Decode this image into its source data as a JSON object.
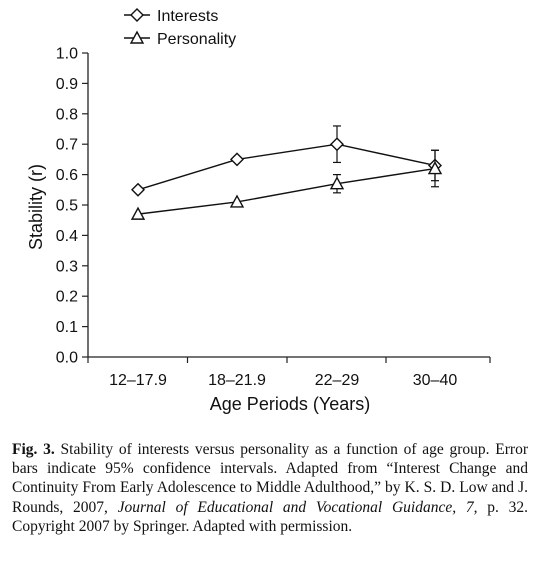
{
  "chart_data": {
    "type": "line",
    "categories": [
      "12–17.9",
      "18–21.9",
      "22–29",
      "30–40"
    ],
    "series": [
      {
        "name": "Interests",
        "marker": "diamond",
        "values": [
          0.55,
          0.65,
          0.7,
          0.63
        ],
        "error_low": [
          0.54,
          0.64,
          0.64,
          0.58
        ],
        "error_high": [
          0.56,
          0.66,
          0.76,
          0.68
        ]
      },
      {
        "name": "Personality",
        "marker": "triangle",
        "values": [
          0.47,
          0.51,
          0.57,
          0.62
        ],
        "error_low": [
          0.46,
          0.5,
          0.54,
          0.56
        ],
        "error_high": [
          0.48,
          0.52,
          0.6,
          0.68
        ]
      }
    ],
    "xlabel": "Age Periods (Years)",
    "ylabel": "Stability (r)",
    "ylim": [
      0.0,
      1.0
    ],
    "yticks": [
      "0.0",
      "0.1",
      "0.2",
      "0.3",
      "0.4",
      "0.5",
      "0.6",
      "0.7",
      "0.8",
      "0.9",
      "1.0"
    ],
    "grid": false,
    "legend_position": "top-left"
  },
  "caption": {
    "label": "Fig. 3.",
    "text_1": "Stability of interests versus personality as a function of age group. Error bars indicate 95% confidence intervals. Adapted from “Interest Change and Continuity From Early Adolescence to Middle Adulthood,” by K. S. D. Low and J. Rounds, 2007, ",
    "journal": "Journal of Educational and Vocational Guidance, 7,",
    "text_2": " p. 32. Copyright 2007 by Springer. Adapted with permission."
  }
}
